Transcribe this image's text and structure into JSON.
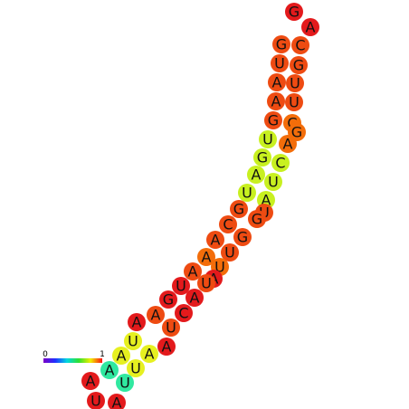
{
  "nodes": [
    {
      "label": "G"
    },
    {
      "label": "A"
    },
    {
      "label": "G"
    },
    {
      "label": "C"
    },
    {
      "label": "U"
    },
    {
      "label": "G"
    },
    {
      "label": "A"
    },
    {
      "label": "U"
    },
    {
      "label": "A"
    },
    {
      "label": "U"
    },
    {
      "label": "G"
    },
    {
      "label": "C"
    },
    {
      "label": "G"
    },
    {
      "label": "A"
    },
    {
      "label": "U"
    },
    {
      "label": "G"
    },
    {
      "label": "C"
    },
    {
      "label": "A"
    },
    {
      "label": "U"
    },
    {
      "label": "U"
    },
    {
      "label": "A"
    },
    {
      "label": "U"
    },
    {
      "label": "G"
    },
    {
      "label": "G"
    },
    {
      "label": "C"
    },
    {
      "label": "G"
    },
    {
      "label": "A"
    },
    {
      "label": "U"
    },
    {
      "label": "A"
    },
    {
      "label": "U"
    },
    {
      "label": "A"
    },
    {
      "label": "A"
    },
    {
      "label": "U"
    },
    {
      "label": "U"
    },
    {
      "label": "A"
    },
    {
      "label": "G"
    },
    {
      "label": "C"
    },
    {
      "label": "A"
    },
    {
      "label": "U"
    },
    {
      "label": "A"
    },
    {
      "label": "A"
    },
    {
      "label": "U"
    },
    {
      "label": "A"
    },
    {
      "label": "A"
    },
    {
      "label": "A"
    },
    {
      "label": "U"
    },
    {
      "label": "A"
    },
    {
      "label": "U"
    },
    {
      "label": "U"
    },
    {
      "label": "A"
    }
  ],
  "legend": {
    "min": "0",
    "max": "1"
  }
}
